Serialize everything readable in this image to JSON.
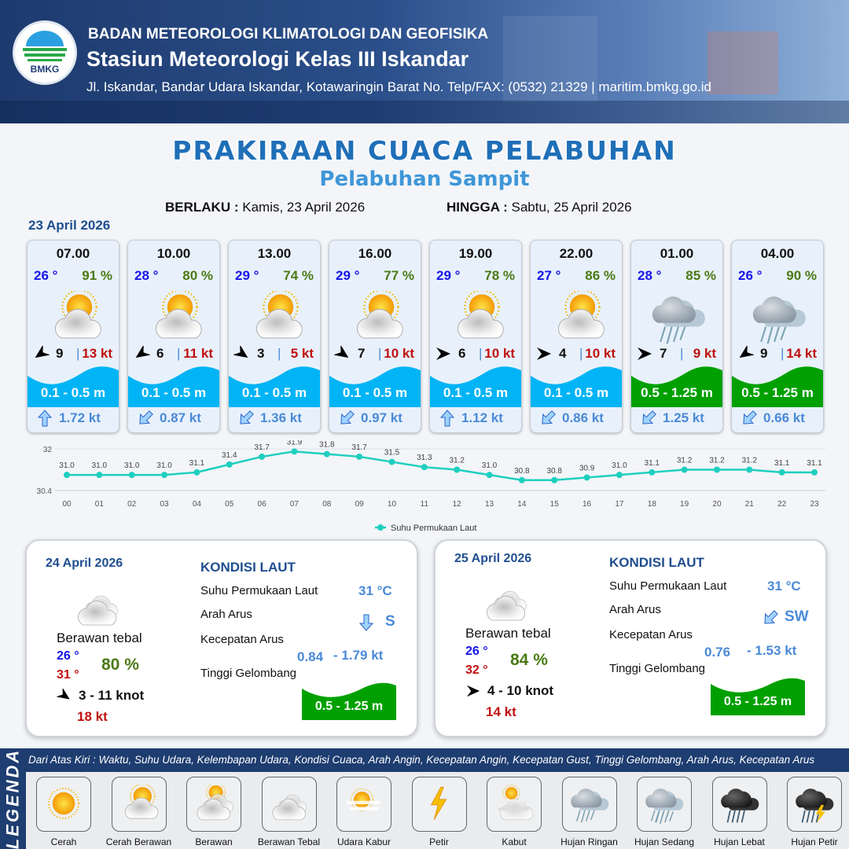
{
  "header": {
    "logo_text": "BMKG",
    "agency": "BADAN METEOROLOGI KLIMATOLOGI DAN GEOFISIKA",
    "station": "Stasiun Meteorologi Kelas III Iskandar",
    "address": "Jl. Iskandar, Bandar Udara Iskandar, Kotawaringin Barat No. Telp/FAX: (0532) 21329 | maritim.bmkg.go.id"
  },
  "title": "PRAKIRAAN CUACA PELABUHAN",
  "subtitle": "Pelabuhan Sampit",
  "validity": {
    "from_label": "BERLAKU :",
    "from": "Kamis, 23 April 2026",
    "to_label": "HINGGA :",
    "to": "Sabtu, 25 April 2026"
  },
  "day1": {
    "date": "23 April 2026"
  },
  "colors": {
    "temp": "#1515e8",
    "humidity": "#4a7a14",
    "gust": "#c01010",
    "wave_low": "#00b4f5",
    "wave_mid": "#00a000",
    "current": "#4a8ad8",
    "title": "#1f6fb8"
  },
  "forecasts": [
    {
      "time": "07.00",
      "temp": "26 °",
      "hum": "91 %",
      "icon": "cerah-berawan",
      "wind_dir": "up-right",
      "wind": "9",
      "sep": "|",
      "gust": "13 kt",
      "wave": "0.1 - 0.5 m",
      "wave_level": "low",
      "cur_dir": "up",
      "current": "1.72 kt"
    },
    {
      "time": "10.00",
      "temp": "28 °",
      "hum": "80 %",
      "icon": "cerah-berawan",
      "wind_dir": "up-right",
      "wind": "6",
      "sep": "|",
      "gust": "11 kt",
      "wave": "0.1 - 0.5 m",
      "wave_level": "low",
      "cur_dir": "down-left",
      "current": "0.87 kt"
    },
    {
      "time": "13.00",
      "temp": "29 °",
      "hum": "74 %",
      "icon": "cerah-berawan",
      "wind_dir": "up-left",
      "wind": "3",
      "sep": "|",
      "gust": "5 kt",
      "wave": "0.1 - 0.5 m",
      "wave_level": "low",
      "cur_dir": "down-left",
      "current": "1.36 kt"
    },
    {
      "time": "16.00",
      "temp": "29 °",
      "hum": "77 %",
      "icon": "cerah-berawan",
      "wind_dir": "up-left",
      "wind": "7",
      "sep": "|",
      "gust": "10 kt",
      "wave": "0.1 - 0.5 m",
      "wave_level": "low",
      "cur_dir": "down-left",
      "current": "0.97 kt"
    },
    {
      "time": "19.00",
      "temp": "29 °",
      "hum": "78 %",
      "icon": "cerah-berawan",
      "wind_dir": "left",
      "wind": "6",
      "sep": "|",
      "gust": "10 kt",
      "wave": "0.1 - 0.5 m",
      "wave_level": "low",
      "cur_dir": "up",
      "current": "1.12 kt"
    },
    {
      "time": "22.00",
      "temp": "27 °",
      "hum": "86 %",
      "icon": "cerah-berawan",
      "wind_dir": "left",
      "wind": "4",
      "sep": "|",
      "gust": "10 kt",
      "wave": "0.1 - 0.5 m",
      "wave_level": "low",
      "cur_dir": "down-left",
      "current": "0.86 kt"
    },
    {
      "time": "01.00",
      "temp": "28 °",
      "hum": "85 %",
      "icon": "hujan-ringan",
      "wind_dir": "left",
      "wind": "7",
      "sep": "|",
      "gust": "9 kt",
      "wave": "0.5 - 1.25 m",
      "wave_level": "mid",
      "cur_dir": "down-left",
      "current": "1.25 kt"
    },
    {
      "time": "04.00",
      "temp": "26 °",
      "hum": "90 %",
      "icon": "hujan-ringan",
      "wind_dir": "up-right",
      "wind": "9",
      "sep": "|",
      "gust": "14 kt",
      "wave": "0.5 - 1.25 m",
      "wave_level": "mid",
      "cur_dir": "down-left",
      "current": "0.66 kt"
    }
  ],
  "chart_data": {
    "type": "line",
    "categories": [
      "00",
      "01",
      "02",
      "03",
      "04",
      "05",
      "06",
      "07",
      "08",
      "09",
      "10",
      "11",
      "12",
      "13",
      "14",
      "15",
      "16",
      "17",
      "18",
      "19",
      "20",
      "21",
      "22",
      "23"
    ],
    "series": [
      {
        "name": "Suhu Permukaan Laut",
        "values": [
          31.0,
          31.0,
          31.0,
          31.0,
          31.1,
          31.4,
          31.7,
          31.9,
          31.8,
          31.7,
          31.5,
          31.3,
          31.2,
          31.0,
          30.8,
          30.8,
          30.9,
          31.0,
          31.1,
          31.2,
          31.2,
          31.2,
          31.1,
          31.1
        ],
        "color": "#1ecfbf"
      }
    ],
    "yticks": [
      "32",
      "30.4"
    ],
    "ylim": [
      30.4,
      32
    ],
    "grid": true,
    "legend": "bottom-center"
  },
  "days": [
    {
      "date": "24 April 2026",
      "icon": "berawan-tebal",
      "cond": "Berawan tebal",
      "tmin": "26 °",
      "tmax": "31 °",
      "hum": "80 %",
      "wind_dir": "up-left",
      "wind": "3  - 11 knot",
      "gust": "18 kt",
      "sea_title": "KONDISI LAUT",
      "sst_label": "Suhu Permukaan Laut",
      "sst": "31 °C",
      "cur_dir_label": "Arah Arus",
      "cur_dir": "down",
      "cur_dir_text": "S",
      "cur_spd_label": "Kecepatan Arus",
      "cur_min": "0.84",
      "cur_max": "- 1.79 kt",
      "wave_label": "Tinggi Gelombang",
      "wave": "0.5 - 1.25 m"
    },
    {
      "date": "25 April 2026",
      "icon": "berawan-tebal",
      "cond": "Berawan tebal",
      "tmin": "26 °",
      "tmax": "32 °",
      "hum": "84 %",
      "wind_dir": "left",
      "wind": "4  - 10 knot",
      "gust": "14 kt",
      "sea_title": "KONDISI LAUT",
      "sst_label": "Suhu Permukaan Laut",
      "sst": "31 °C",
      "cur_dir_label": "Arah Arus",
      "cur_dir": "down-left",
      "cur_dir_text": "SW",
      "cur_spd_label": "Kecepatan Arus",
      "cur_min": "0.76",
      "cur_max": "- 1.53 kt",
      "wave_label": "Tinggi Gelombang",
      "wave": "0.5 - 1.25 m"
    }
  ],
  "legend": {
    "side_label": "LEGENDA",
    "note": "Dari Atas Kiri : Waktu, Suhu Udara, Kelembapan Udara, Kondisi Cuaca, Arah Angin, Kecepatan Angin, Kecepatan Gust, Tinggi Gelombang, Arah Arus, Kecepatan Arus",
    "items": [
      {
        "label": "Cerah",
        "icon": "cerah"
      },
      {
        "label": "Cerah Berawan",
        "icon": "cerah-berawan"
      },
      {
        "label": "Berawan",
        "icon": "berawan"
      },
      {
        "label": "Berawan Tebal",
        "icon": "berawan-tebal"
      },
      {
        "label": "Udara Kabur",
        "icon": "udara-kabur"
      },
      {
        "label": "Petir",
        "icon": "petir"
      },
      {
        "label": "Kabut",
        "icon": "kabut"
      },
      {
        "label": "Hujan Ringan",
        "icon": "hujan-ringan"
      },
      {
        "label": "Hujan Sedang",
        "icon": "hujan-sedang"
      },
      {
        "label": "Hujan Lebat",
        "icon": "hujan-lebat"
      },
      {
        "label": "Hujan Petir",
        "icon": "hujan-petir"
      }
    ]
  }
}
